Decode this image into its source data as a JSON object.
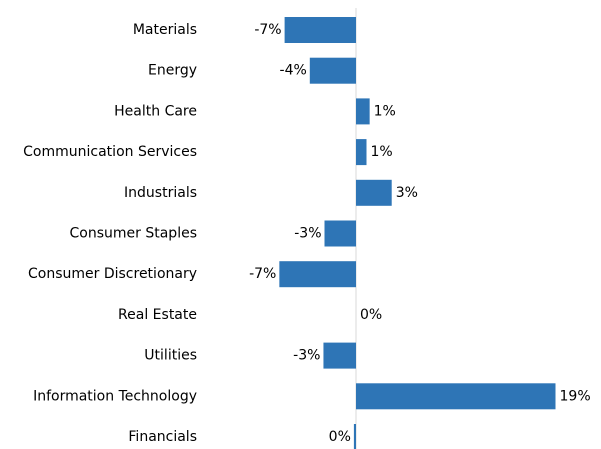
{
  "chart_data": {
    "type": "hbar",
    "categories": [
      "Materials",
      "Energy",
      "Health Care",
      "Communication Services",
      "Industrials",
      "Consumer Staples",
      "Consumer Discretionary",
      "Real Estate",
      "Utilities",
      "Information Technology",
      "Financials"
    ],
    "values": [
      -6.8,
      -4.4,
      1.3,
      1.0,
      3.4,
      -3.0,
      -7.3,
      0.0,
      -3.1,
      19.0,
      -0.2
    ],
    "value_labels": [
      "-7%",
      "-4%",
      "1%",
      "1%",
      "3%",
      "-3%",
      "-7%",
      "0%",
      "-3%",
      "19%",
      "0%"
    ],
    "color": "#2e75b6",
    "xlim": [
      -8,
      20
    ]
  }
}
